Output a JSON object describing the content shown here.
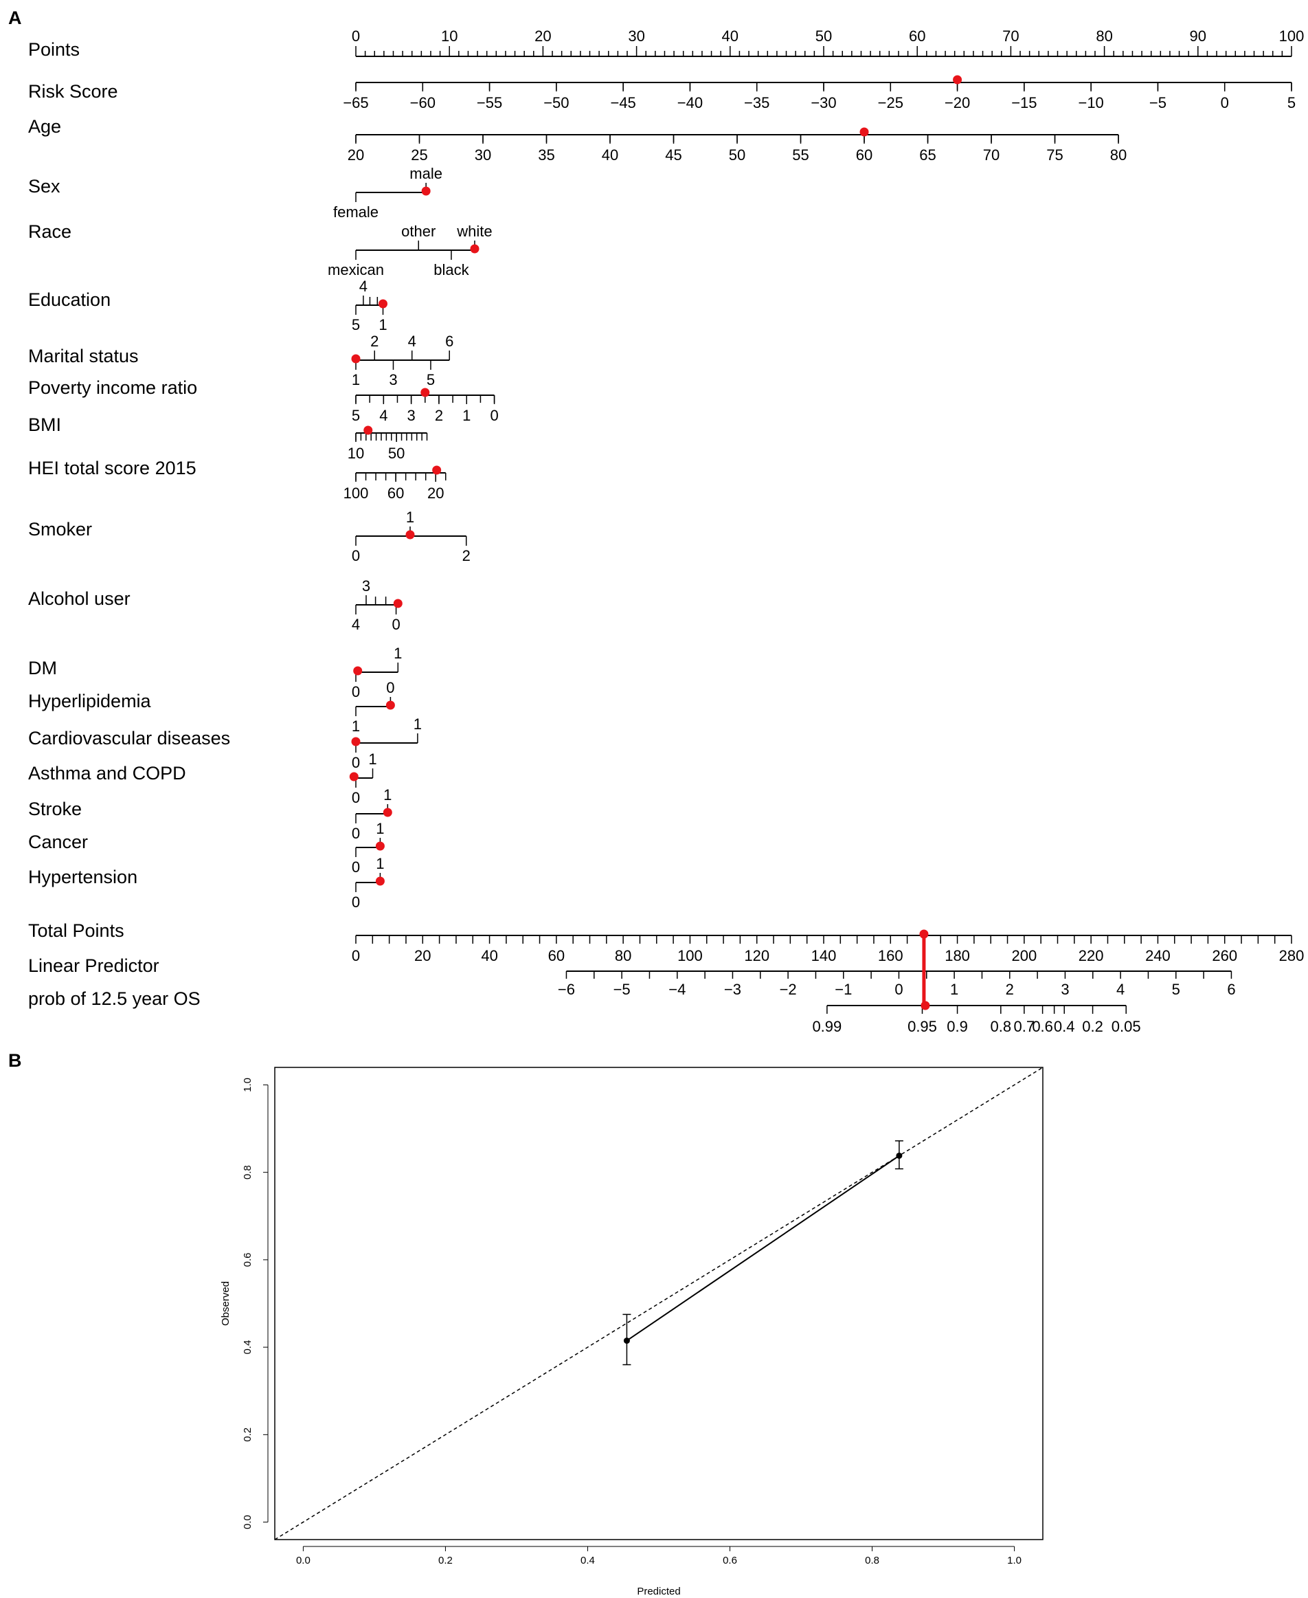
{
  "chart_data": [
    {
      "type": "nomogram",
      "panel": "A",
      "title": "",
      "selected_patient_color": "#e8141a",
      "axis_color": "#000000",
      "rows": [
        {
          "label": "Points",
          "ticks": [
            {
              "v": 0,
              "l": "0"
            },
            {
              "v": 10,
              "l": "10"
            },
            {
              "v": 20,
              "l": "20"
            },
            {
              "v": 30,
              "l": "30"
            },
            {
              "v": 40,
              "l": "40"
            },
            {
              "v": 50,
              "l": "50"
            },
            {
              "v": 60,
              "l": "60"
            },
            {
              "v": 70,
              "l": "70"
            },
            {
              "v": 80,
              "l": "80"
            },
            {
              "v": 90,
              "l": "90"
            },
            {
              "v": 100,
              "l": "100"
            }
          ],
          "minor_step": 1,
          "labels_above": true
        },
        {
          "label": "Risk Score",
          "range": [
            -65,
            5
          ],
          "points_at_min": 0,
          "points_at_max": 100,
          "ticks": [
            {
              "v": -65,
              "l": "−65"
            },
            {
              "v": -60,
              "l": "−60"
            },
            {
              "v": -55,
              "l": "−55"
            },
            {
              "v": -50,
              "l": "−50"
            },
            {
              "v": -45,
              "l": "−45"
            },
            {
              "v": -40,
              "l": "−40"
            },
            {
              "v": -35,
              "l": "−35"
            },
            {
              "v": -30,
              "l": "−30"
            },
            {
              "v": -25,
              "l": "−25"
            },
            {
              "v": -20,
              "l": "−20"
            },
            {
              "v": -15,
              "l": "−15"
            },
            {
              "v": -10,
              "l": "−10"
            },
            {
              "v": -5,
              "l": "−5"
            },
            {
              "v": 0,
              "l": "0"
            },
            {
              "v": 5,
              "l": "5"
            }
          ],
          "selected": -20
        },
        {
          "label": "Age",
          "range": [
            20,
            80
          ],
          "points_at_min": 0,
          "points_at_max": 81.5,
          "ticks": [
            {
              "v": 20,
              "l": "20"
            },
            {
              "v": 25,
              "l": "25"
            },
            {
              "v": 30,
              "l": "30"
            },
            {
              "v": 35,
              "l": "35"
            },
            {
              "v": 40,
              "l": "40"
            },
            {
              "v": 45,
              "l": "45"
            },
            {
              "v": 50,
              "l": "50"
            },
            {
              "v": 55,
              "l": "55"
            },
            {
              "v": 60,
              "l": "60"
            },
            {
              "v": 65,
              "l": "65"
            },
            {
              "v": 70,
              "l": "70"
            },
            {
              "v": 75,
              "l": "75"
            },
            {
              "v": 80,
              "l": "80"
            }
          ],
          "selected": 60
        },
        {
          "label": "Sex",
          "categorical": true,
          "levels": [
            {
              "l": "female",
              "p": 0,
              "pos": "below"
            },
            {
              "l": "male",
              "p": 7.5,
              "pos": "above"
            }
          ],
          "selected_points": 7.5
        },
        {
          "label": "Race",
          "categorical": true,
          "levels": [
            {
              "l": "mexican",
              "p": 0,
              "pos": "below"
            },
            {
              "l": "other",
              "p": 6.7,
              "pos": "above"
            },
            {
              "l": "black",
              "p": 10.2,
              "pos": "below"
            },
            {
              "l": "white",
              "p": 12.7,
              "pos": "above"
            }
          ],
          "selected_points": 12.7
        },
        {
          "label": "Education",
          "categorical": true,
          "levels": [
            {
              "l": "5",
              "p": 0,
              "pos": "below"
            },
            {
              "l": "4",
              "p": 0.8,
              "pos": "above"
            },
            {
              "l": "1",
              "p": 2.9,
              "pos": "below"
            }
          ],
          "extra_ticks": [
            1.5,
            2.3
          ],
          "selected_points": 2.9
        },
        {
          "label": "Marital status",
          "categorical": true,
          "levels": [
            {
              "l": "1",
              "p": 0,
              "pos": "below"
            },
            {
              "l": "2",
              "p": 2.0,
              "pos": "above"
            },
            {
              "l": "3",
              "p": 4.0,
              "pos": "below"
            },
            {
              "l": "4",
              "p": 6.0,
              "pos": "above"
            },
            {
              "l": "5",
              "p": 8.0,
              "pos": "below"
            },
            {
              "l": "6",
              "p": 10.0,
              "pos": "above"
            }
          ],
          "selected_points": 0
        },
        {
          "label": "Poverty income ratio",
          "range": [
            5,
            0
          ],
          "points_at_min": 0,
          "points_at_max": 14.8,
          "ticks": [
            {
              "v": 5,
              "l": "5"
            },
            {
              "v": 4,
              "l": "4"
            },
            {
              "v": 3,
              "l": "3"
            },
            {
              "v": 2,
              "l": "2"
            },
            {
              "v": 1,
              "l": "1"
            },
            {
              "v": 0,
              "l": "0"
            }
          ],
          "minor_step": 0.5,
          "selected": 2.5
        },
        {
          "label": "BMI",
          "range": [
            10,
            80
          ],
          "points_at_min": 0,
          "points_at_max": 7.6,
          "ticks": [
            {
              "v": 10,
              "l": "10"
            },
            {
              "v": 50,
              "l": "50"
            }
          ],
          "minor_step": 5,
          "selected": 22
        },
        {
          "label": "HEI total score 2015",
          "range": [
            100,
            10
          ],
          "points_at_min": 0,
          "points_at_max": 9.6,
          "ticks": [
            {
              "v": 100,
              "l": "100"
            },
            {
              "v": 60,
              "l": "60"
            },
            {
              "v": 20,
              "l": "20"
            }
          ],
          "minor_step": 10,
          "selected": 19
        },
        {
          "label": "Smoker",
          "categorical": true,
          "levels": [
            {
              "l": "0",
              "p": 0,
              "pos": "below"
            },
            {
              "l": "1",
              "p": 5.8,
              "pos": "above"
            },
            {
              "l": "2",
              "p": 11.8,
              "pos": "below"
            }
          ],
          "selected_points": 5.8
        },
        {
          "label": "Alcohol user",
          "categorical": true,
          "levels": [
            {
              "l": "4",
              "p": 0,
              "pos": "below"
            },
            {
              "l": "3",
              "p": 1.1,
              "pos": "above"
            },
            {
              "l": "0",
              "p": 4.3,
              "pos": "below"
            }
          ],
          "extra_ticks": [
            2.1,
            3.2
          ],
          "selected_points": 4.5
        },
        {
          "label": "DM",
          "categorical": true,
          "levels": [
            {
              "l": "0",
              "p": 0,
              "pos": "below"
            },
            {
              "l": "1",
              "p": 4.5,
              "pos": "above"
            }
          ],
          "selected_points": 0.2
        },
        {
          "label": "Hyperlipidemia",
          "categorical": true,
          "levels": [
            {
              "l": "1",
              "p": 0,
              "pos": "below"
            },
            {
              "l": "0",
              "p": 3.7,
              "pos": "above"
            }
          ],
          "selected_points": 3.7
        },
        {
          "label": "Cardiovascular diseases",
          "categorical": true,
          "levels": [
            {
              "l": "0",
              "p": 0,
              "pos": "below"
            },
            {
              "l": "1",
              "p": 6.6,
              "pos": "above"
            }
          ],
          "selected_points": 0
        },
        {
          "label": "Asthma and COPD",
          "categorical": true,
          "levels": [
            {
              "l": "0",
              "p": 0,
              "pos": "below"
            },
            {
              "l": "1",
              "p": 1.8,
              "pos": "above"
            }
          ],
          "selected_points": -0.2
        },
        {
          "label": "Stroke",
          "categorical": true,
          "levels": [
            {
              "l": "0",
              "p": 0,
              "pos": "below"
            },
            {
              "l": "1",
              "p": 3.4,
              "pos": "above"
            }
          ],
          "selected_points": 3.4
        },
        {
          "label": "Cancer",
          "categorical": true,
          "levels": [
            {
              "l": "0",
              "p": 0,
              "pos": "below"
            },
            {
              "l": "1",
              "p": 2.6,
              "pos": "above"
            }
          ],
          "selected_points": 2.6
        },
        {
          "label": "Hypertension",
          "categorical": true,
          "levels": [
            {
              "l": "0",
              "p": 0,
              "pos": "below"
            },
            {
              "l": "1",
              "p": 2.6,
              "pos": "above"
            }
          ],
          "selected_points": 2.6
        },
        {
          "label": "Total Points",
          "range": [
            0,
            280
          ],
          "ticks": [
            {
              "v": 0,
              "l": "0"
            },
            {
              "v": 20,
              "l": "20"
            },
            {
              "v": 40,
              "l": "40"
            },
            {
              "v": 60,
              "l": "60"
            },
            {
              "v": 80,
              "l": "80"
            },
            {
              "v": 100,
              "l": "100"
            },
            {
              "v": 120,
              "l": "120"
            },
            {
              "v": 140,
              "l": "140"
            },
            {
              "v": 160,
              "l": "160"
            },
            {
              "v": 180,
              "l": "180"
            },
            {
              "v": 200,
              "l": "200"
            },
            {
              "v": 220,
              "l": "220"
            },
            {
              "v": 240,
              "l": "240"
            },
            {
              "v": 260,
              "l": "260"
            },
            {
              "v": 280,
              "l": "280"
            }
          ],
          "minor_step": 5,
          "selected": 170
        },
        {
          "label": "Linear Predictor",
          "range": [
            -6,
            6
          ],
          "total_at_min": 63,
          "total_at_max": 262,
          "ticks": [
            {
              "v": -6,
              "l": "−6"
            },
            {
              "v": -5,
              "l": "−5"
            },
            {
              "v": -4,
              "l": "−4"
            },
            {
              "v": -3,
              "l": "−3"
            },
            {
              "v": -2,
              "l": "−2"
            },
            {
              "v": -1,
              "l": "−1"
            },
            {
              "v": 0,
              "l": "0"
            },
            {
              "v": 1,
              "l": "1"
            },
            {
              "v": 2,
              "l": "2"
            },
            {
              "v": 3,
              "l": "3"
            },
            {
              "v": 4,
              "l": "4"
            },
            {
              "v": 5,
              "l": "5"
            },
            {
              "v": 6,
              "l": "6"
            }
          ]
        },
        {
          "label": "prob of 12.5 year OS",
          "ticks_total_points": [
            {
              "t": 141,
              "l": "0.99"
            },
            {
              "t": 169.5,
              "l": "0.95"
            },
            {
              "t": 180,
              "l": "0.9"
            },
            {
              "t": 193,
              "l": "0.8"
            },
            {
              "t": 200,
              "l": "0.7"
            },
            {
              "t": 205.5,
              "l": "0.6"
            },
            {
              "t": 212,
              "l": "0.4"
            },
            {
              "t": 220.5,
              "l": "0.2"
            },
            {
              "t": 230.5,
              "l": "0.05"
            }
          ],
          "extra_ticks_total_points": [
            209
          ],
          "selected_total_points": 170
        }
      ]
    },
    {
      "type": "scatter",
      "panel": "B",
      "title": "",
      "xlabel": "Predicted",
      "ylabel": "Observed",
      "xlim": [
        -0.04,
        1.04
      ],
      "ylim": [
        -0.04,
        1.04
      ],
      "xticks": [
        0.0,
        0.2,
        0.4,
        0.6,
        0.8,
        1.0
      ],
      "yticks": [
        0.0,
        0.2,
        0.4,
        0.6,
        0.8,
        1.0
      ],
      "xtick_labels": [
        "0.0",
        "0.2",
        "0.4",
        "0.6",
        "0.8",
        "1.0"
      ],
      "ytick_labels": [
        "0.0",
        "0.2",
        "0.4",
        "0.6",
        "0.8",
        "1.0"
      ],
      "reference_line": {
        "style": "dashed",
        "from": [
          -0.04,
          -0.04
        ],
        "to": [
          1.04,
          1.04
        ]
      },
      "series": [
        {
          "name": "calibration",
          "x": [
            0.455,
            0.838
          ],
          "y": [
            0.415,
            0.838
          ],
          "err_low": [
            0.36,
            0.808
          ],
          "err_high": [
            0.475,
            0.872
          ]
        }
      ]
    }
  ]
}
